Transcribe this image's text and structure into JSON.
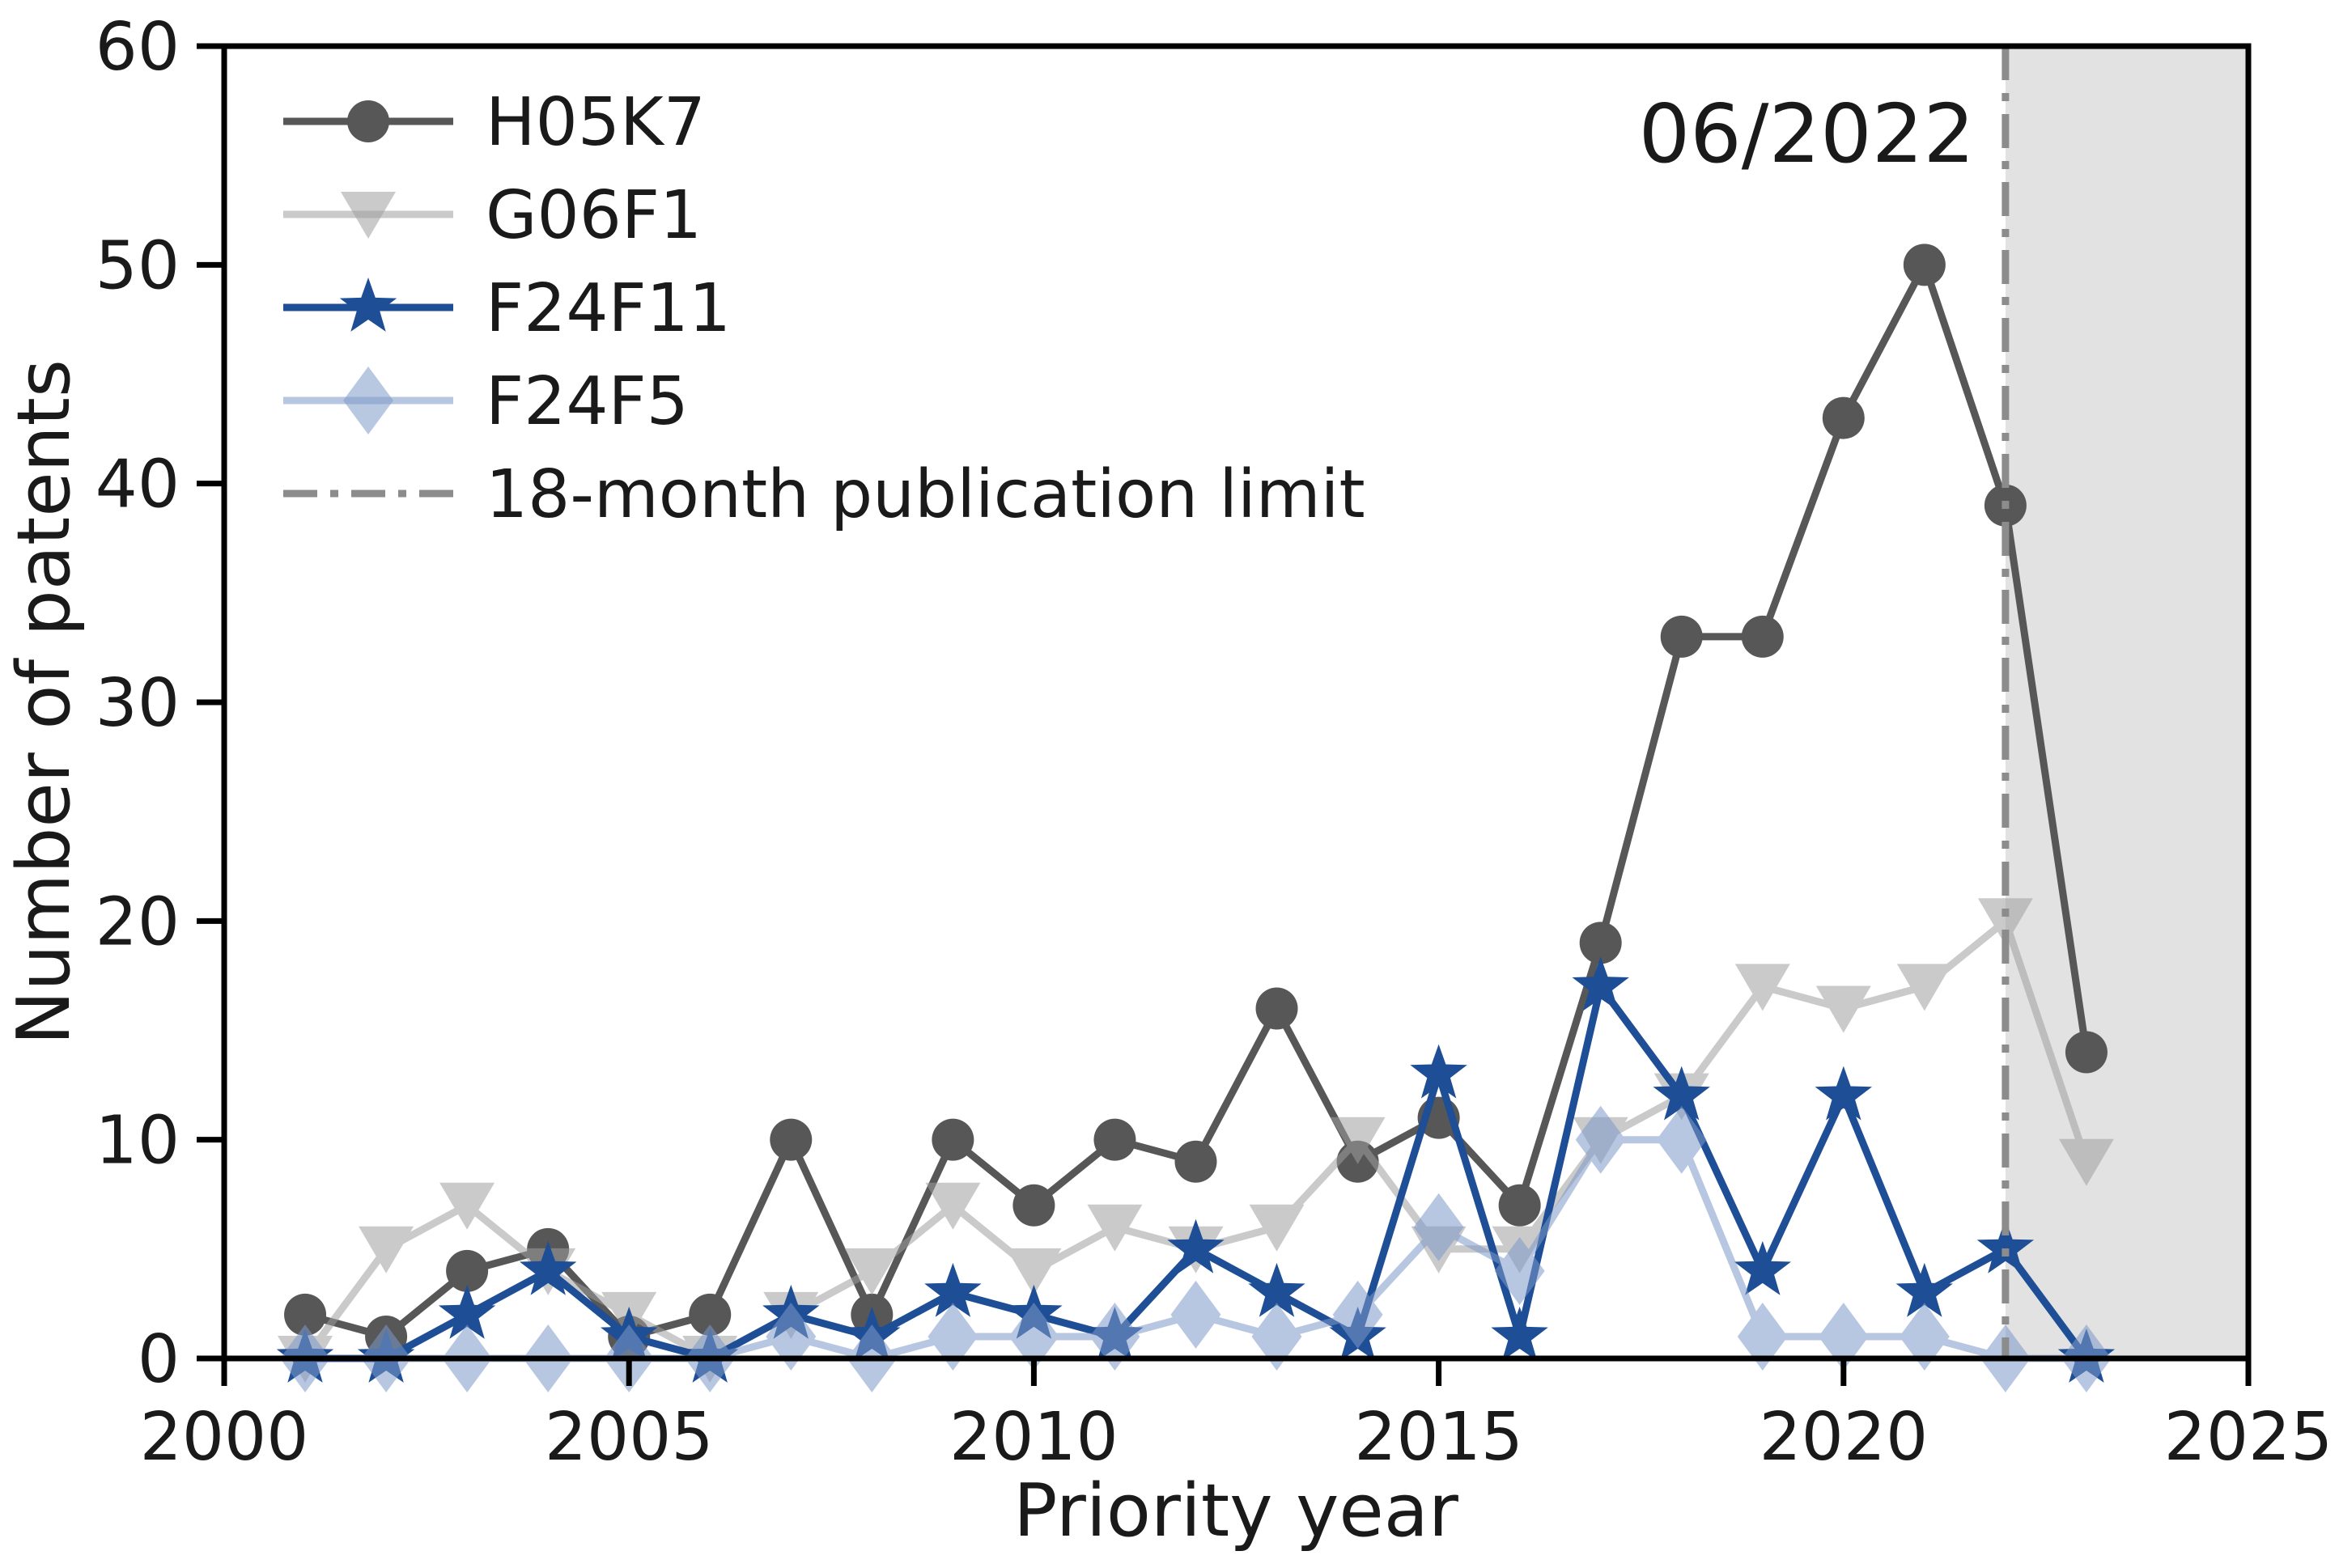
{
  "chart_data": {
    "type": "line",
    "annotation": "06/2022",
    "xlabel": "Priority year",
    "ylabel": "Number of patents",
    "xlim": [
      2000,
      2025
    ],
    "ylim": [
      0,
      60
    ],
    "xticks": [
      2000,
      2005,
      2010,
      2015,
      2020,
      2025
    ],
    "yticks": [
      0,
      10,
      20,
      30,
      40,
      50,
      60
    ],
    "grid": false,
    "legend_position": "upper-left",
    "x": [
      2001,
      2002,
      2003,
      2004,
      2005,
      2006,
      2007,
      2008,
      2009,
      2010,
      2011,
      2012,
      2013,
      2014,
      2015,
      2016,
      2017,
      2018,
      2019,
      2020,
      2021,
      2022,
      2023
    ],
    "series": [
      {
        "name": "H05K7",
        "marker": "circle",
        "color": "#575757",
        "opacity": 1,
        "values": [
          2,
          1,
          4,
          5,
          1,
          2,
          10,
          2,
          10,
          7,
          10,
          9,
          16,
          9,
          11,
          7,
          19,
          33,
          33,
          43,
          50,
          39,
          14
        ]
      },
      {
        "name": "G06F1",
        "marker": "triangle-down",
        "color": "#9e9e9e",
        "opacity": 0.55,
        "values": [
          0,
          5,
          7,
          4,
          2,
          0,
          2,
          4,
          7,
          4,
          6,
          5,
          6,
          10,
          5,
          5,
          10,
          12,
          17,
          16,
          17,
          20,
          9
        ]
      },
      {
        "name": "F24F11",
        "marker": "star",
        "color": "#1d4e96",
        "opacity": 1,
        "values": [
          0,
          0,
          2,
          4,
          1,
          0,
          2,
          1,
          3,
          2,
          1,
          5,
          3,
          1,
          13,
          1,
          17,
          12,
          4,
          12,
          3,
          5,
          0
        ]
      },
      {
        "name": "F24F5",
        "marker": "diamond",
        "color": "#7e9ac8",
        "opacity": 0.55,
        "values": [
          0,
          0,
          0,
          0,
          0,
          0,
          1,
          0,
          1,
          1,
          1,
          2,
          1,
          2,
          6,
          4,
          10,
          10,
          1,
          1,
          1,
          0,
          0
        ]
      }
    ],
    "vline": {
      "x": 2022,
      "label": "18-month publication limit",
      "color": "#8c8c8c",
      "style": "dashdot"
    },
    "shaded_region": {
      "from": 2022,
      "to": 2025,
      "color": "#e2e2e2"
    },
    "colors": {
      "axis": "#000000",
      "text": "#1a1a1a",
      "background": "#ffffff"
    }
  }
}
